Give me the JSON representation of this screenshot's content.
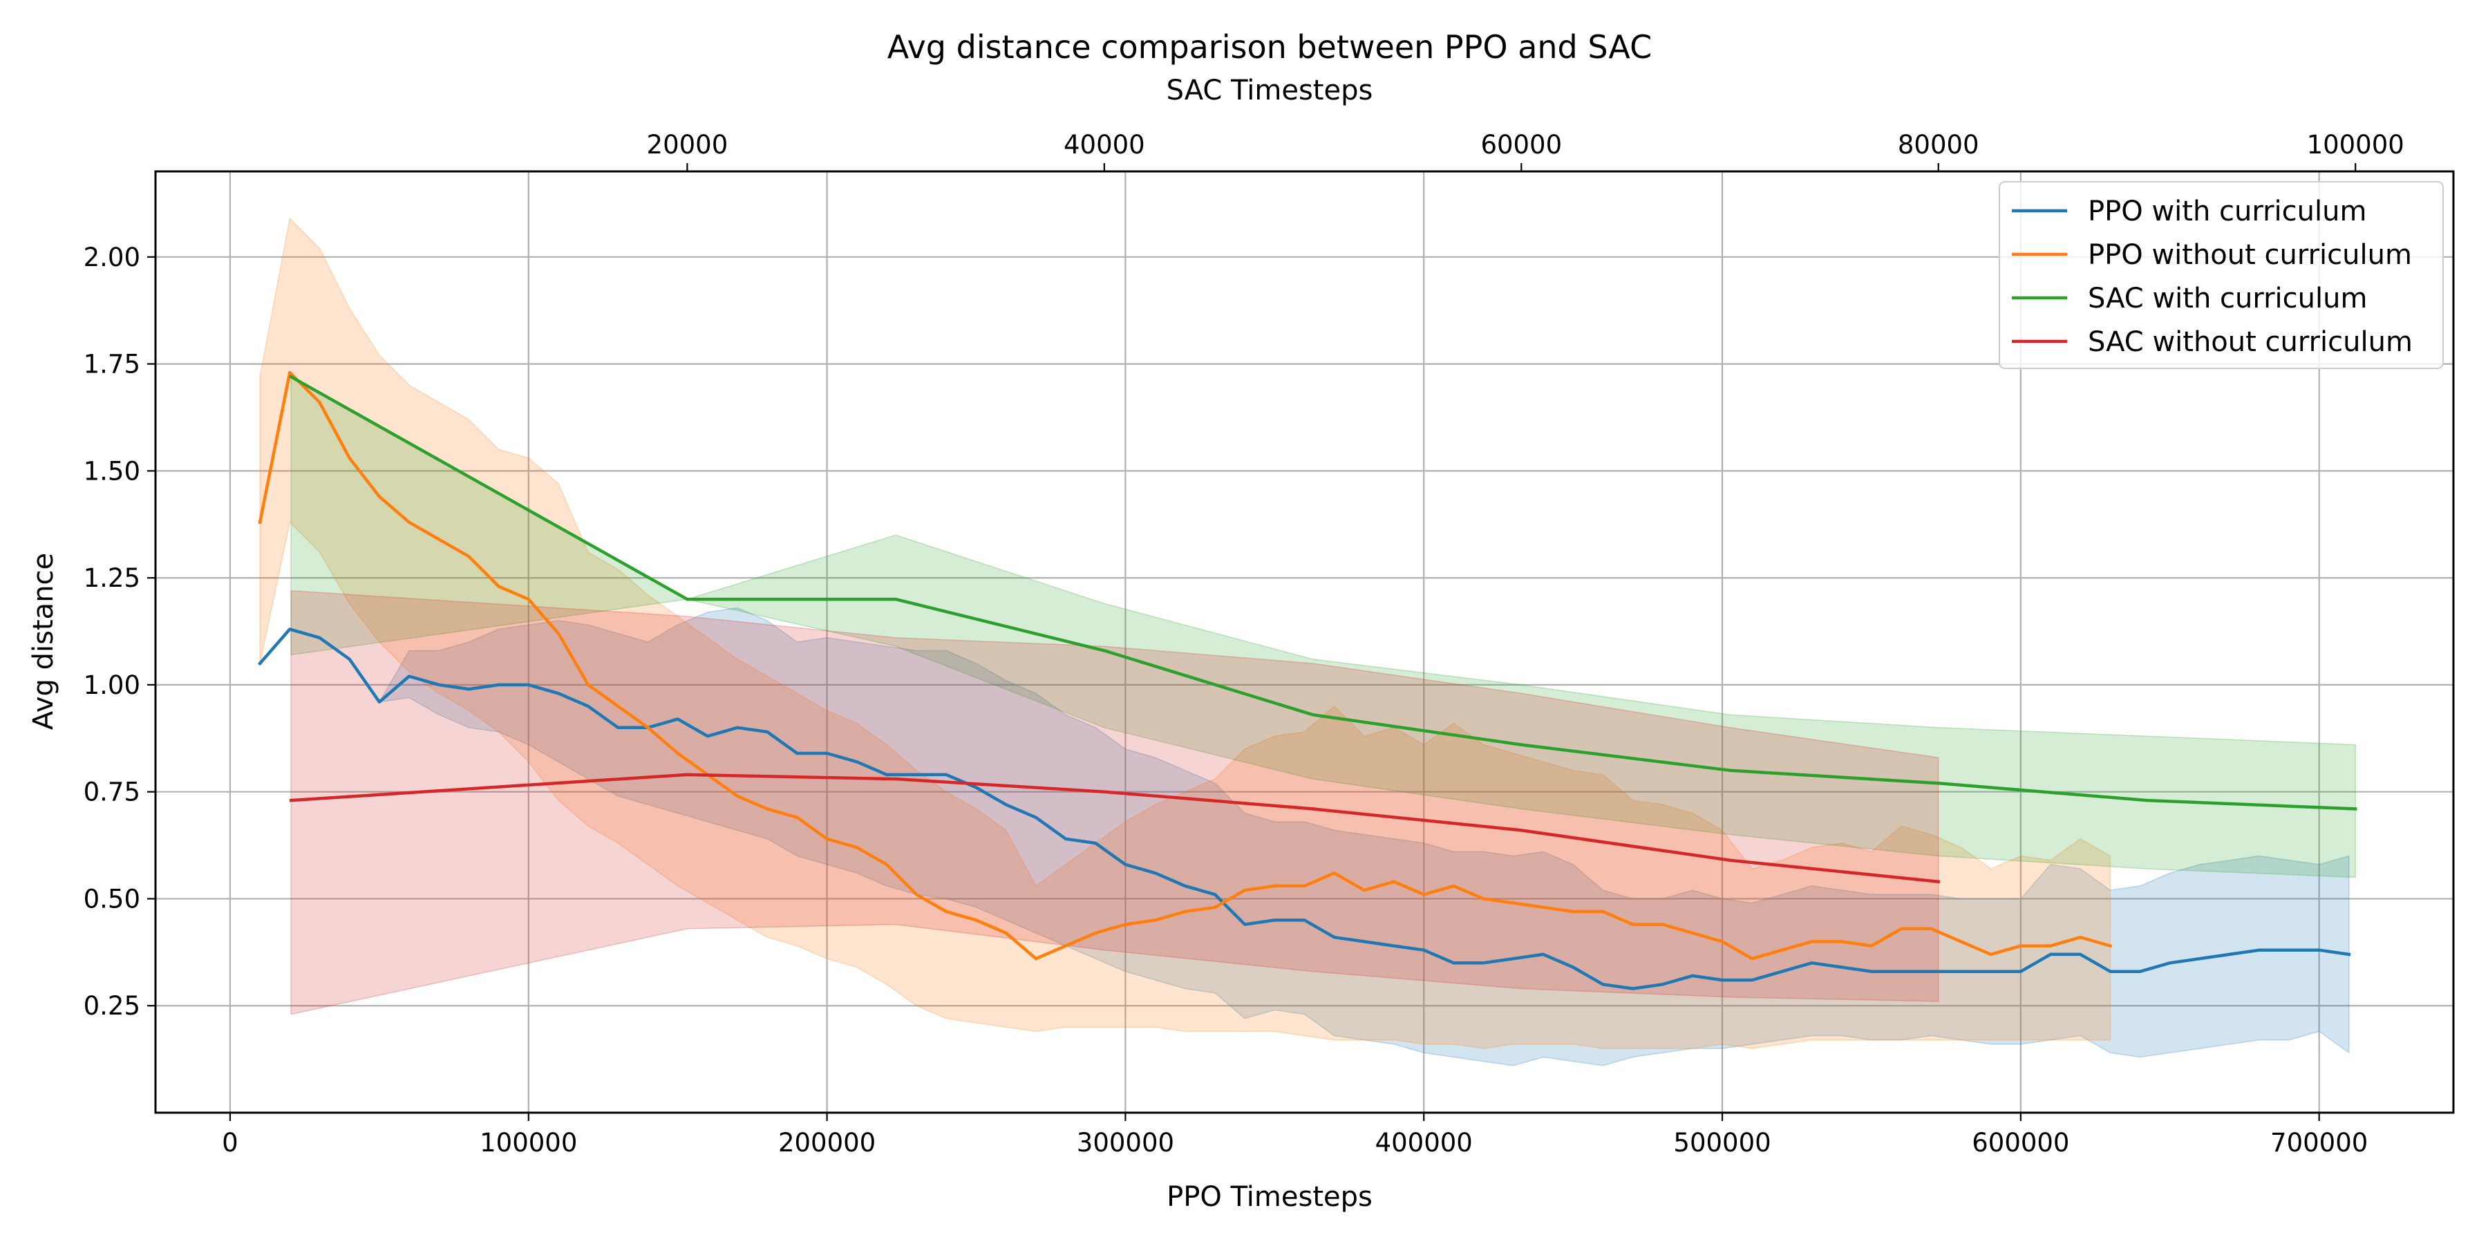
{
  "chart_data": {
    "type": "line",
    "title": "Avg distance comparison between PPO and SAC",
    "xlabel": "PPO Timesteps",
    "x2label": "SAC Timesteps",
    "ylabel": "Avg distance",
    "xlim": [
      -25000,
      745000
    ],
    "x2lim": [
      -5500,
      104700
    ],
    "ylim": [
      0.0,
      2.2
    ],
    "xticks": [
      0,
      100000,
      200000,
      300000,
      400000,
      500000,
      600000,
      700000
    ],
    "x2ticks": [
      20000,
      40000,
      60000,
      80000,
      100000
    ],
    "yticks": [
      0.25,
      0.5,
      0.75,
      1.0,
      1.25,
      1.5,
      1.75,
      2.0
    ],
    "grid": true,
    "legend_position": "top-right",
    "series": [
      {
        "name": "PPO with curriculum",
        "axis": "ppo",
        "color": "#1f77b4",
        "x": [
          10000,
          20000,
          30000,
          40000,
          50000,
          60000,
          70000,
          80000,
          90000,
          100000,
          110000,
          120000,
          130000,
          140000,
          150000,
          160000,
          170000,
          180000,
          190000,
          200000,
          210000,
          220000,
          230000,
          240000,
          250000,
          260000,
          270000,
          280000,
          290000,
          300000,
          310000,
          320000,
          330000,
          340000,
          350000,
          360000,
          370000,
          380000,
          390000,
          400000,
          410000,
          420000,
          430000,
          440000,
          450000,
          460000,
          470000,
          480000,
          490000,
          500000,
          510000,
          520000,
          530000,
          540000,
          550000,
          560000,
          570000,
          580000,
          590000,
          600000,
          610000,
          620000,
          630000,
          640000,
          650000,
          660000,
          670000,
          680000,
          690000,
          700000,
          710000
        ],
        "y": [
          1.05,
          1.13,
          1.11,
          1.06,
          0.96,
          1.02,
          1.0,
          0.99,
          1.0,
          1.0,
          0.98,
          0.95,
          0.9,
          0.9,
          0.92,
          0.88,
          0.9,
          0.89,
          0.84,
          0.84,
          0.82,
          0.79,
          0.79,
          0.79,
          0.76,
          0.72,
          0.69,
          0.64,
          0.63,
          0.58,
          0.56,
          0.53,
          0.51,
          0.44,
          0.45,
          0.45,
          0.41,
          0.4,
          0.39,
          0.38,
          0.35,
          0.35,
          0.36,
          0.37,
          0.34,
          0.3,
          0.29,
          0.3,
          0.32,
          0.31,
          0.31,
          0.33,
          0.35,
          0.34,
          0.33,
          0.33,
          0.33,
          0.33,
          0.33,
          0.33,
          0.37,
          0.37,
          0.33,
          0.33,
          0.35,
          0.36,
          0.37,
          0.38,
          0.38,
          0.38,
          0.37
        ],
        "lower": [
          1.05,
          1.13,
          1.11,
          1.06,
          0.96,
          0.97,
          0.93,
          0.9,
          0.89,
          0.86,
          0.82,
          0.78,
          0.74,
          0.72,
          0.7,
          0.68,
          0.66,
          0.64,
          0.6,
          0.58,
          0.56,
          0.53,
          0.51,
          0.5,
          0.48,
          0.45,
          0.42,
          0.39,
          0.36,
          0.33,
          0.31,
          0.29,
          0.28,
          0.22,
          0.24,
          0.23,
          0.18,
          0.17,
          0.16,
          0.14,
          0.13,
          0.12,
          0.11,
          0.13,
          0.12,
          0.11,
          0.13,
          0.14,
          0.15,
          0.15,
          0.16,
          0.17,
          0.18,
          0.18,
          0.17,
          0.17,
          0.18,
          0.17,
          0.16,
          0.16,
          0.17,
          0.18,
          0.14,
          0.13,
          0.14,
          0.15,
          0.16,
          0.17,
          0.17,
          0.19,
          0.14
        ],
        "upper": [
          1.05,
          1.13,
          1.11,
          1.06,
          0.96,
          1.08,
          1.08,
          1.1,
          1.13,
          1.14,
          1.15,
          1.14,
          1.12,
          1.1,
          1.14,
          1.17,
          1.18,
          1.15,
          1.1,
          1.11,
          1.1,
          1.09,
          1.08,
          1.08,
          1.05,
          1.01,
          0.98,
          0.93,
          0.9,
          0.85,
          0.83,
          0.8,
          0.77,
          0.7,
          0.68,
          0.68,
          0.66,
          0.65,
          0.64,
          0.63,
          0.61,
          0.61,
          0.6,
          0.61,
          0.58,
          0.52,
          0.5,
          0.5,
          0.52,
          0.5,
          0.49,
          0.51,
          0.53,
          0.52,
          0.51,
          0.51,
          0.51,
          0.5,
          0.5,
          0.5,
          0.58,
          0.57,
          0.52,
          0.53,
          0.56,
          0.58,
          0.59,
          0.6,
          0.59,
          0.58,
          0.6
        ]
      },
      {
        "name": "PPO without curriculum",
        "axis": "ppo",
        "color": "#ff7f0e",
        "x": [
          10000,
          20000,
          30000,
          40000,
          50000,
          60000,
          70000,
          80000,
          90000,
          100000,
          110000,
          120000,
          130000,
          140000,
          150000,
          160000,
          170000,
          180000,
          190000,
          200000,
          210000,
          220000,
          230000,
          240000,
          250000,
          260000,
          270000,
          280000,
          290000,
          300000,
          310000,
          320000,
          330000,
          340000,
          350000,
          360000,
          370000,
          380000,
          390000,
          400000,
          410000,
          420000,
          430000,
          440000,
          450000,
          460000,
          470000,
          480000,
          490000,
          500000,
          510000,
          520000,
          530000,
          540000,
          550000,
          560000,
          570000,
          580000,
          590000,
          600000,
          610000,
          620000,
          630000
        ],
        "y": [
          1.38,
          1.73,
          1.66,
          1.53,
          1.44,
          1.38,
          1.34,
          1.3,
          1.23,
          1.2,
          1.12,
          1.0,
          0.95,
          0.9,
          0.84,
          0.79,
          0.74,
          0.71,
          0.69,
          0.64,
          0.62,
          0.58,
          0.51,
          0.47,
          0.45,
          0.42,
          0.36,
          0.39,
          0.42,
          0.44,
          0.45,
          0.47,
          0.48,
          0.52,
          0.53,
          0.53,
          0.56,
          0.52,
          0.54,
          0.51,
          0.53,
          0.5,
          0.49,
          0.48,
          0.47,
          0.47,
          0.44,
          0.44,
          0.42,
          0.4,
          0.36,
          0.38,
          0.4,
          0.4,
          0.39,
          0.43,
          0.43,
          0.4,
          0.37,
          0.39,
          0.39,
          0.41,
          0.39
        ],
        "lower": [
          1.05,
          1.38,
          1.31,
          1.19,
          1.1,
          1.03,
          0.98,
          0.94,
          0.89,
          0.82,
          0.73,
          0.67,
          0.63,
          0.58,
          0.53,
          0.49,
          0.45,
          0.41,
          0.39,
          0.36,
          0.34,
          0.3,
          0.25,
          0.22,
          0.21,
          0.2,
          0.19,
          0.2,
          0.2,
          0.2,
          0.2,
          0.19,
          0.19,
          0.19,
          0.19,
          0.18,
          0.17,
          0.17,
          0.17,
          0.16,
          0.16,
          0.15,
          0.16,
          0.16,
          0.16,
          0.15,
          0.15,
          0.15,
          0.15,
          0.16,
          0.15,
          0.16,
          0.17,
          0.17,
          0.17,
          0.17,
          0.17,
          0.17,
          0.17,
          0.17,
          0.17,
          0.17,
          0.17
        ],
        "upper": [
          1.72,
          2.09,
          2.02,
          1.88,
          1.77,
          1.7,
          1.66,
          1.62,
          1.55,
          1.53,
          1.47,
          1.31,
          1.27,
          1.21,
          1.16,
          1.11,
          1.06,
          1.02,
          0.98,
          0.94,
          0.91,
          0.86,
          0.8,
          0.75,
          0.71,
          0.66,
          0.53,
          0.58,
          0.63,
          0.68,
          0.72,
          0.75,
          0.78,
          0.85,
          0.88,
          0.89,
          0.95,
          0.88,
          0.9,
          0.86,
          0.91,
          0.86,
          0.84,
          0.82,
          0.8,
          0.79,
          0.73,
          0.72,
          0.7,
          0.66,
          0.57,
          0.59,
          0.62,
          0.63,
          0.61,
          0.67,
          0.65,
          0.62,
          0.57,
          0.6,
          0.59,
          0.64,
          0.6
        ]
      },
      {
        "name": "SAC with curriculum",
        "axis": "sac",
        "color": "#2ca02c",
        "x": [
          1000,
          20000,
          30000,
          40000,
          50000,
          60000,
          70000,
          80000,
          90000,
          100000
        ],
        "y": [
          1.72,
          1.2,
          1.2,
          1.08,
          0.93,
          0.86,
          0.8,
          0.77,
          0.73,
          0.71
        ],
        "lower": [
          1.07,
          1.2,
          1.09,
          0.9,
          0.78,
          0.71,
          0.65,
          0.6,
          0.57,
          0.55
        ],
        "upper": [
          1.72,
          1.2,
          1.35,
          1.19,
          1.06,
          1.0,
          0.93,
          0.9,
          0.88,
          0.86
        ]
      },
      {
        "name": "SAC without curriculum",
        "axis": "sac",
        "color": "#d62728",
        "x": [
          1000,
          20000,
          30000,
          40000,
          50000,
          60000,
          70000,
          80000
        ],
        "y": [
          0.73,
          0.79,
          0.78,
          0.75,
          0.71,
          0.66,
          0.59,
          0.54
        ],
        "lower": [
          0.23,
          0.43,
          0.44,
          0.38,
          0.33,
          0.29,
          0.27,
          0.26
        ],
        "upper": [
          1.22,
          1.16,
          1.11,
          1.09,
          1.05,
          0.98,
          0.9,
          0.83
        ]
      }
    ]
  }
}
